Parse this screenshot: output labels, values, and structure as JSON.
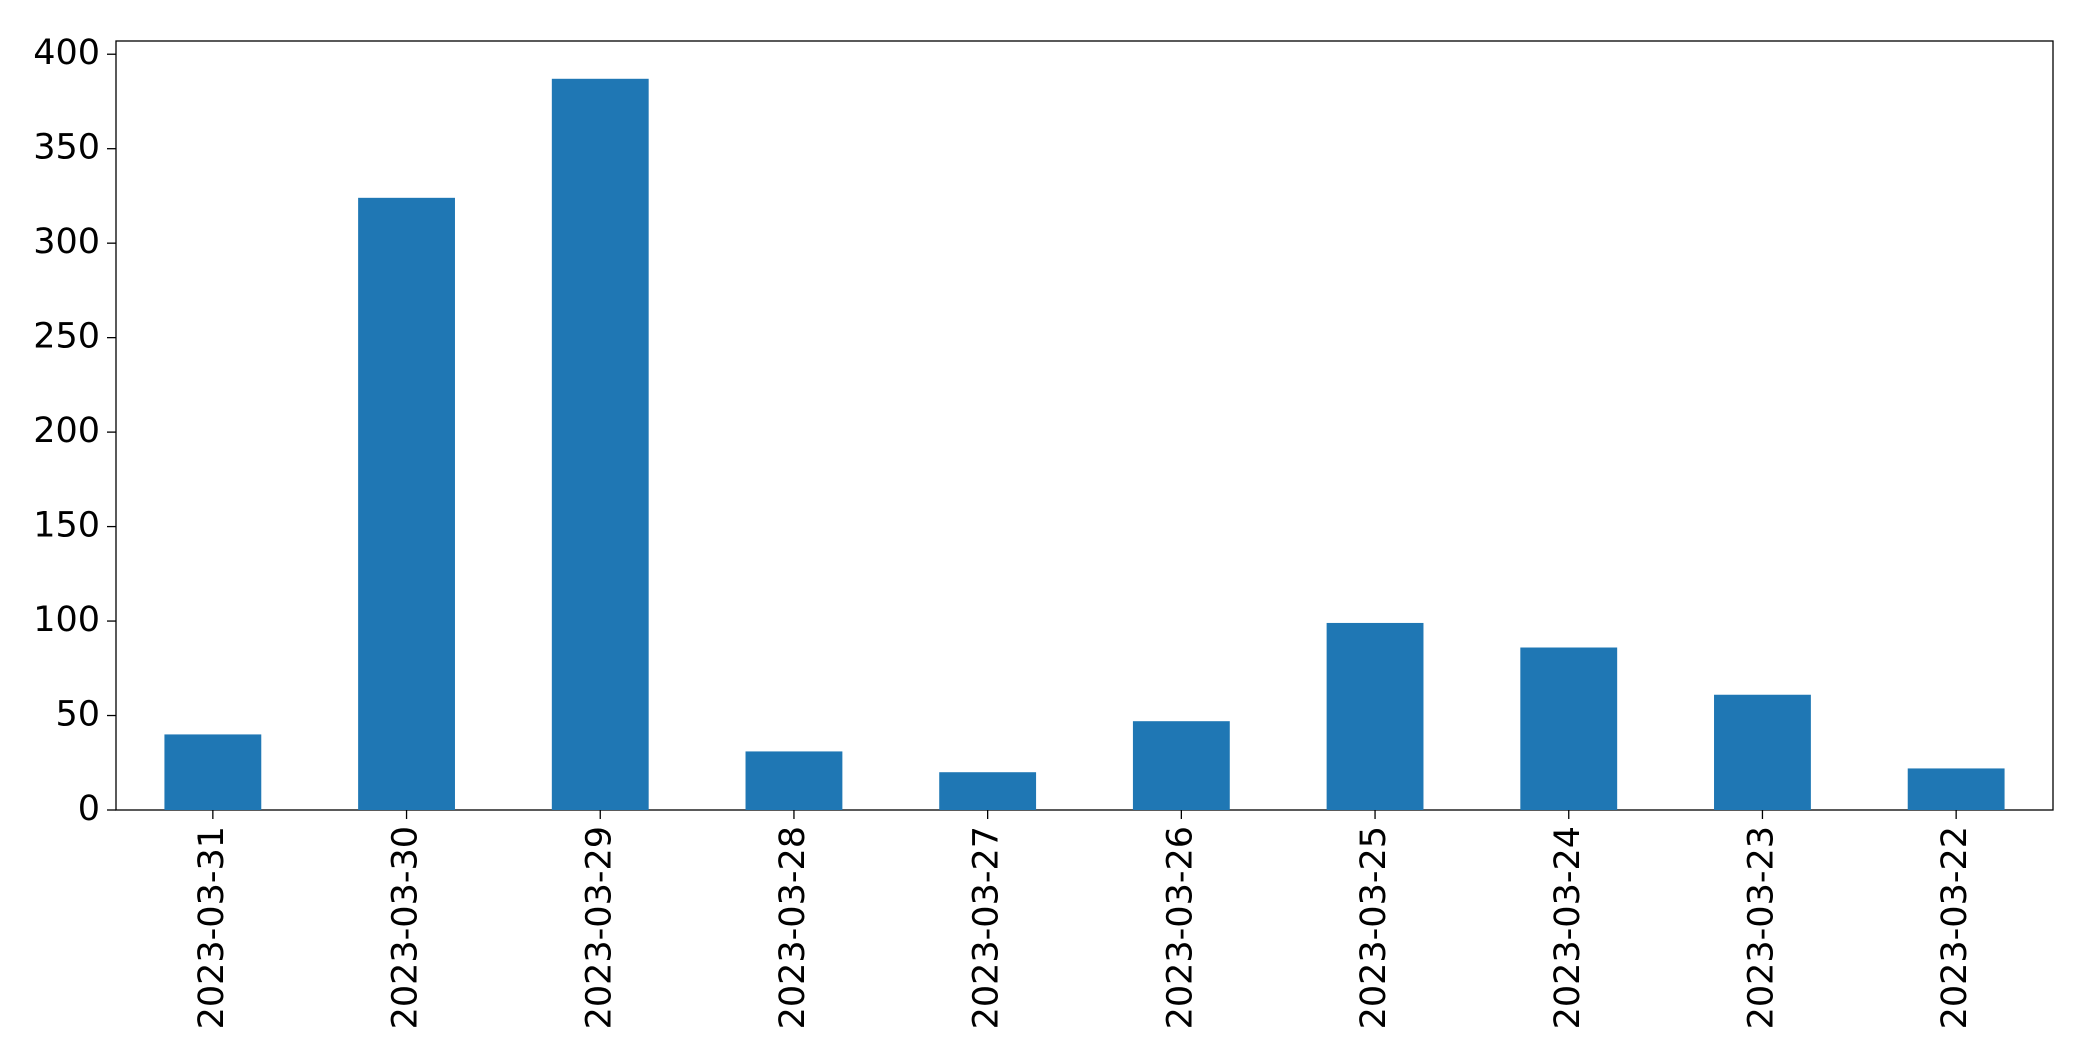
{
  "chart_data": {
    "type": "bar",
    "categories": [
      "2023-03-31",
      "2023-03-30",
      "2023-03-29",
      "2023-03-28",
      "2023-03-27",
      "2023-03-26",
      "2023-03-25",
      "2023-03-24",
      "2023-03-23",
      "2023-03-22"
    ],
    "values": [
      40,
      324,
      387,
      31,
      20,
      47,
      99,
      86,
      61,
      22
    ],
    "color": "#1f77b4",
    "ylim": [
      0,
      407
    ],
    "yticks": [
      0,
      50,
      100,
      150,
      200,
      250,
      300,
      350,
      400
    ],
    "grid": false
  }
}
